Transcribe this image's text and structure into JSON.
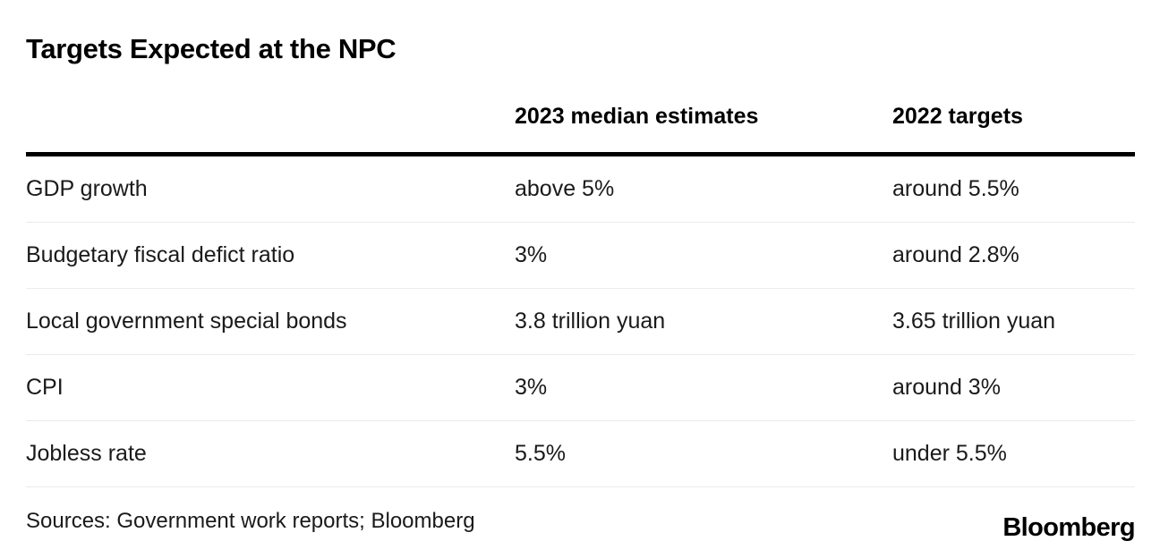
{
  "chart_data": {
    "type": "table",
    "title": "Targets Expected at the NPC",
    "columns": [
      "",
      "2023 median estimates",
      "2022 targets"
    ],
    "rows": [
      [
        "GDP growth",
        "above 5%",
        "around 5.5%"
      ],
      [
        "Budgetary fiscal defict ratio",
        "3%",
        "around 2.8%"
      ],
      [
        "Local government special bonds",
        "3.8 trillion yuan",
        "3.65 trillion yuan"
      ],
      [
        "CPI",
        "3%",
        "around 3%"
      ],
      [
        "Jobless rate",
        "5.5%",
        "under 5.5%"
      ]
    ],
    "source_note": "Sources: Government work reports; Bloomberg",
    "legend_position": "none",
    "grid": "horizontal-dividers"
  },
  "footer": {
    "sources": "Sources: Government work reports; Bloomberg",
    "logo": "Bloomberg"
  },
  "colors": {
    "background": "#ffffff",
    "title_text": "#000000",
    "body_text": "#1a1a1a",
    "header_rule": "#000000",
    "row_divider": "#ebebeb"
  }
}
